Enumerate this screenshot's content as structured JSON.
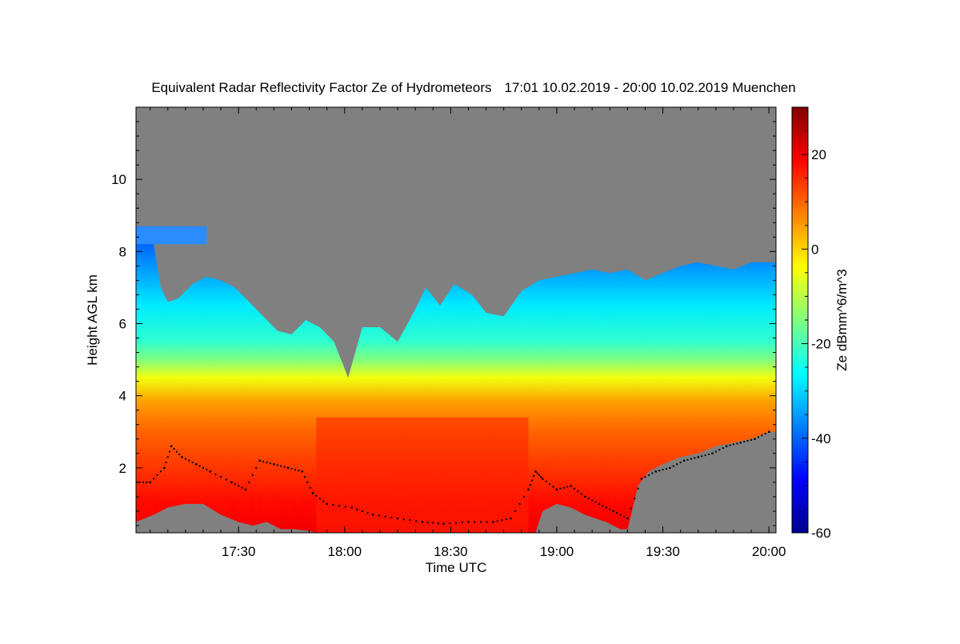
{
  "chart_data": {
    "type": "heatmap",
    "title": "Equivalent Radar Reflectivity Factor Ze of Hydrometeors",
    "time_range_label": "17:01 10.02.2019 - 20:00 10.02.2019",
    "station": "Muenchen",
    "xlabel": "Time UTC",
    "ylabel": "Height AGL km",
    "x_unit": "minutes after 17:00 UTC",
    "xlim": [
      1,
      182
    ],
    "ylim": [
      0.2,
      12.0
    ],
    "x_ticks": [
      {
        "value": 30,
        "label": "17:30"
      },
      {
        "value": 60,
        "label": "18:00"
      },
      {
        "value": 90,
        "label": "18:30"
      },
      {
        "value": 120,
        "label": "19:00"
      },
      {
        "value": 150,
        "label": "19:30"
      },
      {
        "value": 180,
        "label": "20:00"
      }
    ],
    "y_ticks": [
      {
        "value": 2,
        "label": "2"
      },
      {
        "value": 4,
        "label": "4"
      },
      {
        "value": 6,
        "label": "6"
      },
      {
        "value": 8,
        "label": "8"
      },
      {
        "value": 10,
        "label": "10"
      }
    ],
    "colorbar": {
      "label": "Ze dBmm^6/m^3",
      "range": [
        -60,
        30
      ],
      "ticks": [
        {
          "value": -60,
          "label": "-60"
        },
        {
          "value": -40,
          "label": "-40"
        },
        {
          "value": -20,
          "label": "-20"
        },
        {
          "value": 0,
          "label": "0"
        },
        {
          "value": 20,
          "label": "20"
        }
      ]
    },
    "colors": {
      "no_signal": "#808080",
      "jet": [
        "#00008f",
        "#0000ff",
        "#0080ff",
        "#00ffff",
        "#80ff80",
        "#ffff00",
        "#ff8000",
        "#ff0000",
        "#800000"
      ]
    },
    "echo_top_km": [
      [
        1,
        8.5
      ],
      [
        3,
        8.6
      ],
      [
        6,
        8.2
      ],
      [
        8,
        7.0
      ],
      [
        10,
        6.6
      ],
      [
        13,
        6.7
      ],
      [
        17,
        7.1
      ],
      [
        21,
        7.3
      ],
      [
        25,
        7.2
      ],
      [
        29,
        7.0
      ],
      [
        33,
        6.6
      ],
      [
        37,
        6.2
      ],
      [
        41,
        5.8
      ],
      [
        45,
        5.7
      ],
      [
        49,
        6.1
      ],
      [
        53,
        5.9
      ],
      [
        57,
        5.5
      ],
      [
        61,
        4.5
      ],
      [
        65,
        5.9
      ],
      [
        70,
        5.9
      ],
      [
        75,
        5.5
      ],
      [
        80,
        6.4
      ],
      [
        83,
        7.0
      ],
      [
        87,
        6.5
      ],
      [
        91,
        7.1
      ],
      [
        96,
        6.8
      ],
      [
        100,
        6.3
      ],
      [
        105,
        6.2
      ],
      [
        110,
        6.9
      ],
      [
        115,
        7.2
      ],
      [
        120,
        7.3
      ],
      [
        125,
        7.4
      ],
      [
        130,
        7.5
      ],
      [
        135,
        7.4
      ],
      [
        140,
        7.5
      ],
      [
        145,
        7.2
      ],
      [
        150,
        7.4
      ],
      [
        155,
        7.6
      ],
      [
        160,
        7.7
      ],
      [
        165,
        7.6
      ],
      [
        170,
        7.5
      ],
      [
        175,
        7.7
      ],
      [
        180,
        7.7
      ],
      [
        182,
        7.7
      ]
    ],
    "upper_fragment": {
      "x": [
        1,
        21
      ],
      "y_bottom": 8.2,
      "y_top": 8.7
    },
    "echo_base_km": [
      [
        1,
        0.5
      ],
      [
        6,
        0.7
      ],
      [
        10,
        0.9
      ],
      [
        15,
        1.0
      ],
      [
        20,
        1.0
      ],
      [
        25,
        0.7
      ],
      [
        30,
        0.5
      ],
      [
        34,
        0.4
      ],
      [
        38,
        0.5
      ],
      [
        42,
        0.3
      ],
      [
        46,
        0.3
      ],
      [
        50,
        0.25
      ],
      [
        52,
        0.2
      ],
      [
        110,
        0.2
      ],
      [
        114,
        0.2
      ],
      [
        116,
        0.8
      ],
      [
        120,
        1.0
      ],
      [
        124,
        0.9
      ],
      [
        128,
        0.7
      ],
      [
        134,
        0.5
      ],
      [
        138,
        0.3
      ],
      [
        140,
        0.3
      ],
      [
        143,
        1.5
      ],
      [
        146,
        1.9
      ],
      [
        150,
        2.1
      ],
      [
        155,
        2.3
      ],
      [
        160,
        2.4
      ],
      [
        165,
        2.6
      ],
      [
        170,
        2.7
      ],
      [
        175,
        2.8
      ],
      [
        180,
        3.0
      ],
      [
        182,
        3.0
      ]
    ],
    "ze_profile_dbz": [
      {
        "h": 0.2,
        "ze": 20
      },
      {
        "h": 1.0,
        "ze": 18
      },
      {
        "h": 2.0,
        "ze": 14
      },
      {
        "h": 3.0,
        "ze": 10
      },
      {
        "h": 3.8,
        "ze": 5
      },
      {
        "h": 4.5,
        "ze": -5
      },
      {
        "h": 5.0,
        "ze": -15
      },
      {
        "h": 5.5,
        "ze": -22
      },
      {
        "h": 6.5,
        "ze": -28
      },
      {
        "h": 7.5,
        "ze": -35
      },
      {
        "h": 8.5,
        "ze": -42
      }
    ],
    "melting_layer_km": [
      [
        1,
        1.6
      ],
      [
        5,
        1.6
      ],
      [
        9,
        2.0
      ],
      [
        11,
        2.6
      ],
      [
        14,
        2.3
      ],
      [
        18,
        2.1
      ],
      [
        22,
        1.9
      ],
      [
        28,
        1.6
      ],
      [
        32,
        1.4
      ],
      [
        36,
        2.2
      ],
      [
        40,
        2.1
      ],
      [
        44,
        2.0
      ],
      [
        48,
        1.9
      ],
      [
        51,
        1.3
      ],
      [
        55,
        1.0
      ],
      [
        62,
        0.9
      ],
      [
        68,
        0.7
      ],
      [
        75,
        0.6
      ],
      [
        82,
        0.5
      ],
      [
        88,
        0.45
      ],
      [
        95,
        0.5
      ],
      [
        102,
        0.5
      ],
      [
        107,
        0.6
      ],
      [
        112,
        1.4
      ],
      [
        114,
        1.9
      ],
      [
        116,
        1.7
      ],
      [
        120,
        1.4
      ],
      [
        124,
        1.5
      ],
      [
        128,
        1.2
      ],
      [
        132,
        1.0
      ],
      [
        136,
        0.8
      ],
      [
        140,
        0.6
      ],
      [
        144,
        1.7
      ],
      [
        148,
        1.9
      ],
      [
        152,
        2.0
      ],
      [
        156,
        2.2
      ],
      [
        160,
        2.3
      ],
      [
        164,
        2.4
      ],
      [
        168,
        2.6
      ],
      [
        172,
        2.7
      ],
      [
        176,
        2.8
      ],
      [
        180,
        3.0
      ]
    ]
  }
}
